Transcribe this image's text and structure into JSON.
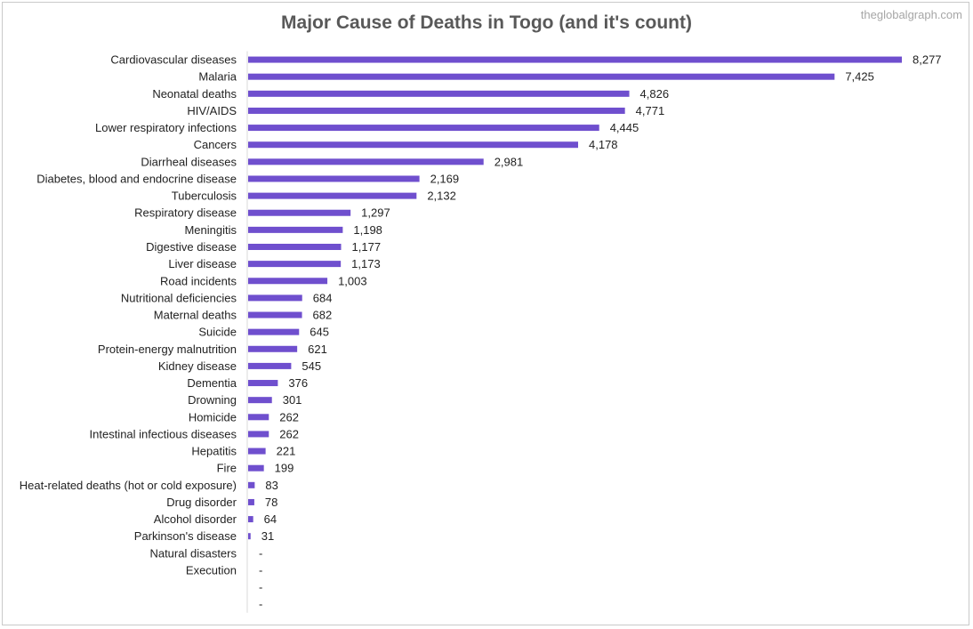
{
  "watermark": "theglobalgraph.com",
  "colors": {
    "bar": "#6f4fce",
    "title": "#595959",
    "axis": "#d9d9d9"
  },
  "chart_data": {
    "type": "bar",
    "orientation": "horizontal",
    "title": "Major Cause of Deaths in Togo (and it's count)",
    "xlabel": "",
    "ylabel": "",
    "xlim": [
      0,
      8600
    ],
    "grid": false,
    "legend": "none",
    "categories": [
      "Cardiovascular diseases",
      "Malaria",
      "Neonatal deaths",
      "HIV/AIDS",
      "Lower respiratory infections",
      "Cancers",
      "Diarrheal diseases",
      "Diabetes, blood and endocrine disease",
      "Tuberculosis",
      "Respiratory disease",
      "Meningitis",
      "Digestive disease",
      "Liver disease",
      "Road incidents",
      "Nutritional deficiencies",
      "Maternal deaths",
      "Suicide",
      "Protein-energy malnutrition",
      "Kidney disease",
      "Dementia",
      "Drowning",
      "Homicide",
      "Intestinal infectious diseases",
      "Hepatitis",
      "Fire",
      "Heat-related deaths (hot or cold exposure)",
      "Drug disorder",
      "Alcohol disorder",
      "Parkinson's disease",
      "Natural disasters",
      "Execution",
      "",
      ""
    ],
    "values": [
      8277,
      7425,
      4826,
      4771,
      4445,
      4178,
      2981,
      2169,
      2132,
      1297,
      1198,
      1177,
      1173,
      1003,
      684,
      682,
      645,
      621,
      545,
      376,
      301,
      262,
      262,
      221,
      199,
      83,
      78,
      64,
      31,
      0,
      0,
      0,
      0
    ],
    "value_labels": [
      "8,277",
      "7,425",
      "4,826",
      "4,771",
      "4,445",
      "4,178",
      "2,981",
      "2,169",
      "2,132",
      "1,297",
      "1,198",
      "1,177",
      "1,173",
      "1,003",
      "684",
      "682",
      "645",
      "621",
      "545",
      "376",
      "301",
      "262",
      "262",
      "221",
      "199",
      "83",
      "78",
      "64",
      "31",
      "-",
      "-",
      "-",
      "-"
    ]
  }
}
